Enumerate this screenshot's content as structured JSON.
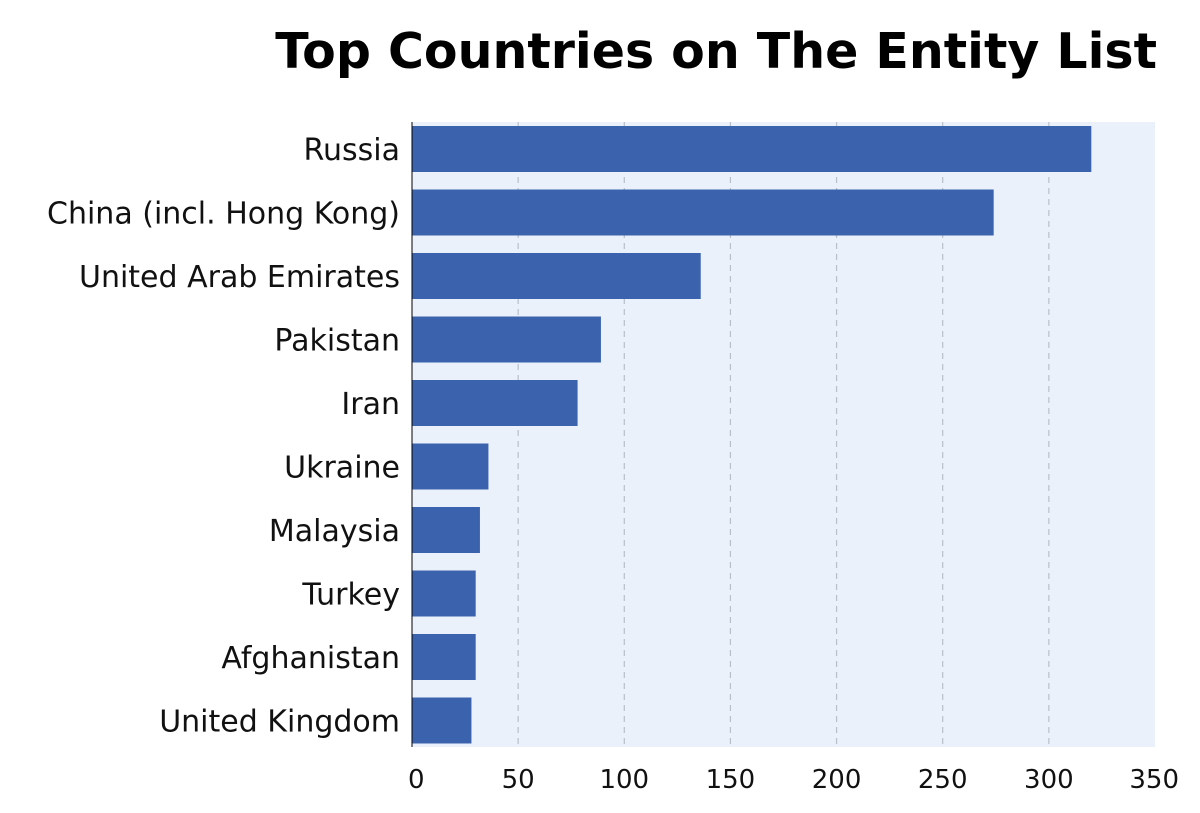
{
  "chart_data": {
    "type": "bar",
    "orientation": "horizontal",
    "title": "Top Countries on The Entity List",
    "xlabel": "",
    "ylabel": "",
    "categories": [
      "Russia",
      "China (incl. Hong Kong)",
      "United Arab Emirates",
      "Pakistan",
      "Iran",
      "Ukraine",
      "Malaysia",
      "Turkey",
      "Afghanistan",
      "United Kingdom"
    ],
    "values": [
      320,
      274,
      136,
      89,
      78,
      36,
      32,
      30,
      30,
      28
    ],
    "xlim": [
      0,
      350
    ],
    "xticks": [
      0,
      50,
      100,
      150,
      200,
      250,
      300,
      350
    ],
    "xtick_labels": [
      "0",
      "50",
      "100",
      "150",
      "200",
      "250",
      "300",
      "350"
    ],
    "grid": "vertical dashed",
    "legend": "none",
    "colors": {
      "bar": "#3b62ad",
      "plot_background": "#eaf1fb",
      "grid": "#b9bfc9",
      "axis": "#000000"
    }
  }
}
